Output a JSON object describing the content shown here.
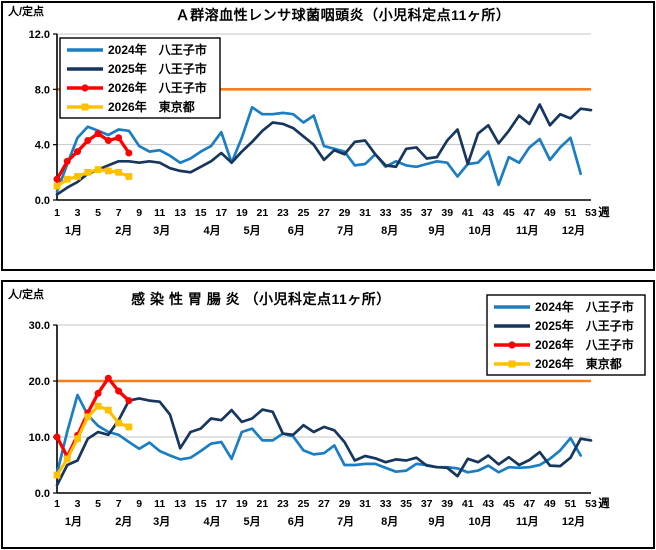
{
  "colors": {
    "grid": "#C6C6C6",
    "axis": "#000000",
    "ref_line": "#F57E20",
    "blue_2024": "#1B7EC3",
    "navy_2025": "#16365D",
    "red_2026": "#FF0000",
    "gold_2026": "#FFC000",
    "legend_border": "#000000",
    "legend_bg": "#FFFFFF"
  },
  "chart_data": [
    {
      "type": "line",
      "title": "Ａ群溶血性レンサ球菌咽頭炎（小児科定点11ヶ所）",
      "y_axis_label": "人/定点",
      "x_axis_label": "週",
      "ylim": [
        0,
        12
      ],
      "y_tick_values": [
        0,
        4,
        8,
        12
      ],
      "y_tick_labels": [
        "0.0",
        "4.0",
        "8.0",
        "12.0"
      ],
      "ref_line_value": 8,
      "week_ticks": [
        1,
        3,
        5,
        7,
        9,
        11,
        13,
        15,
        17,
        19,
        21,
        23,
        25,
        27,
        29,
        31,
        33,
        35,
        37,
        39,
        41,
        43,
        45,
        47,
        49,
        51,
        53
      ],
      "month_labels": [
        {
          "label": "1月",
          "week": 2.6
        },
        {
          "label": "2月",
          "week": 7.5
        },
        {
          "label": "3月",
          "week": 11.2
        },
        {
          "label": "4月",
          "week": 16.1
        },
        {
          "label": "5月",
          "week": 20.0
        },
        {
          "label": "6月",
          "week": 24.3
        },
        {
          "label": "7月",
          "week": 29.1
        },
        {
          "label": "8月",
          "week": 33.4
        },
        {
          "label": "9月",
          "week": 38.0
        },
        {
          "label": "10月",
          "week": 42.2
        },
        {
          "label": "11月",
          "week": 46.8
        },
        {
          "label": "12月",
          "week": 51.3
        }
      ],
      "legend_position": "top-left",
      "series": [
        {
          "name": "2024年　八王子市",
          "color": "#1B7EC3",
          "marker": null,
          "values": [
            0.6,
            2.6,
            4.5,
            5.3,
            5.0,
            4.7,
            5.1,
            5.0,
            3.9,
            3.5,
            3.6,
            3.2,
            2.7,
            3.0,
            3.5,
            3.9,
            4.9,
            2.7,
            4.5,
            6.7,
            6.2,
            6.2,
            6.3,
            6.2,
            5.6,
            6.1,
            3.9,
            3.7,
            3.5,
            2.5,
            2.6,
            3.3,
            2.4,
            2.8,
            2.5,
            2.4,
            2.6,
            2.8,
            2.7,
            1.7,
            2.6,
            2.7,
            3.5,
            1.1,
            3.1,
            2.7,
            3.8,
            4.4,
            2.9,
            3.8,
            4.5,
            1.9
          ]
        },
        {
          "name": "2025年　八王子市",
          "color": "#16365D",
          "marker": null,
          "values": [
            0.4,
            0.9,
            1.3,
            1.9,
            2.2,
            2.5,
            2.8,
            2.8,
            2.7,
            2.8,
            2.7,
            2.3,
            2.1,
            2.0,
            2.4,
            2.8,
            3.4,
            2.7,
            3.5,
            4.2,
            5.0,
            5.6,
            5.5,
            5.2,
            4.6,
            4.0,
            2.9,
            3.6,
            3.3,
            4.2,
            4.3,
            3.3,
            2.5,
            2.4,
            3.7,
            3.8,
            3.0,
            3.1,
            4.3,
            5.1,
            2.6,
            4.8,
            5.4,
            4.1,
            5.0,
            6.1,
            5.5,
            6.9,
            5.4,
            6.2,
            5.9,
            6.6,
            6.5
          ]
        },
        {
          "name": "2026年　八王子市",
          "color": "#FF0000",
          "marker": "circle",
          "values": [
            1.5,
            2.8,
            3.5,
            4.3,
            4.8,
            4.3,
            4.5,
            3.4
          ]
        },
        {
          "name": "2026年　東京都",
          "color": "#FFC000",
          "marker": "square",
          "values": [
            1.0,
            1.5,
            1.7,
            2.0,
            2.2,
            2.1,
            2.0,
            1.7
          ]
        }
      ]
    },
    {
      "type": "line",
      "title": "感 染 性 胃 腸 炎 （小児科定点11ヶ所）",
      "y_axis_label": "人/定点",
      "x_axis_label": "週",
      "ylim": [
        0,
        30
      ],
      "y_tick_values": [
        0,
        10,
        20,
        30
      ],
      "y_tick_labels": [
        "0.0",
        "10.0",
        "20.0",
        "30.0"
      ],
      "ref_line_value": 20,
      "week_ticks": [
        1,
        3,
        5,
        7,
        9,
        11,
        13,
        15,
        17,
        19,
        21,
        23,
        25,
        27,
        29,
        31,
        33,
        35,
        37,
        39,
        41,
        43,
        45,
        47,
        49,
        51,
        53
      ],
      "month_labels": [
        {
          "label": "1月",
          "week": 2.6
        },
        {
          "label": "2月",
          "week": 7.5
        },
        {
          "label": "3月",
          "week": 11.2
        },
        {
          "label": "4月",
          "week": 16.1
        },
        {
          "label": "5月",
          "week": 20.0
        },
        {
          "label": "6月",
          "week": 24.3
        },
        {
          "label": "7月",
          "week": 29.1
        },
        {
          "label": "8月",
          "week": 33.4
        },
        {
          "label": "9月",
          "week": 38.0
        },
        {
          "label": "10月",
          "week": 42.2
        },
        {
          "label": "11月",
          "week": 46.8
        },
        {
          "label": "12月",
          "week": 51.3
        }
      ],
      "legend_position": "top-right",
      "series": [
        {
          "name": "2024年　八王子市",
          "color": "#1B7EC3",
          "marker": null,
          "values": [
            3.5,
            11.0,
            17.5,
            13.9,
            12.0,
            10.9,
            10.4,
            9.1,
            7.9,
            9.0,
            7.5,
            6.7,
            6.0,
            6.3,
            7.5,
            8.8,
            9.1,
            6.1,
            10.9,
            11.5,
            9.4,
            9.4,
            10.6,
            10.1,
            7.6,
            6.9,
            7.1,
            8.5,
            5.0,
            5.0,
            5.2,
            5.2,
            4.5,
            3.8,
            4.0,
            5.2,
            5.0,
            4.6,
            4.6,
            4.4,
            3.7,
            4.0,
            4.9,
            3.7,
            4.6,
            4.5,
            4.6,
            5.0,
            6.1,
            7.6,
            9.8,
            6.7
          ]
        },
        {
          "name": "2025年　八王子市",
          "color": "#16365D",
          "marker": null,
          "values": [
            1.4,
            5.0,
            5.8,
            9.7,
            10.9,
            10.4,
            13.0,
            16.5,
            16.9,
            16.5,
            16.3,
            14.0,
            8.0,
            10.9,
            11.5,
            13.3,
            13.0,
            14.8,
            12.7,
            13.3,
            14.9,
            14.5,
            10.6,
            10.4,
            12.1,
            10.9,
            11.8,
            11.2,
            9.1,
            5.8,
            6.6,
            6.2,
            5.5,
            6.0,
            5.8,
            6.3,
            4.9,
            4.6,
            4.5,
            3.0,
            6.1,
            5.5,
            6.7,
            5.1,
            6.4,
            5.0,
            5.9,
            7.3,
            4.9,
            4.8,
            6.3,
            9.7,
            9.4
          ]
        },
        {
          "name": "2026年　八王子市",
          "color": "#FF0000",
          "marker": "circle",
          "values": [
            10.0,
            6.5,
            10.3,
            14.3,
            17.8,
            20.5,
            18.2,
            16.5
          ]
        },
        {
          "name": "2026年　東京都",
          "color": "#FFC000",
          "marker": "square",
          "values": [
            3.2,
            6.1,
            9.7,
            13.6,
            15.5,
            14.8,
            12.5,
            11.8
          ]
        }
      ]
    }
  ]
}
